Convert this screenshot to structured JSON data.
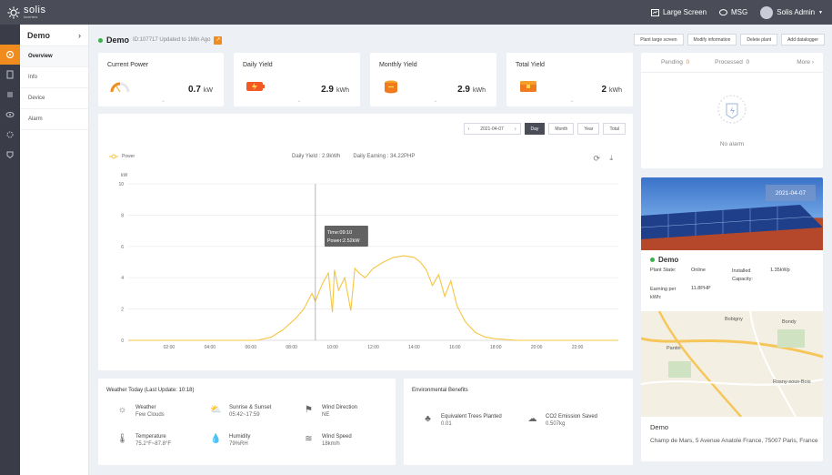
{
  "topbar": {
    "logo": "solis",
    "logo_sub": "inverters",
    "large_screen": "Large Screen",
    "msg": "MSG",
    "user": "Solis Admin"
  },
  "leftnav": {
    "icons": [
      "home-icon",
      "plant-icon",
      "report-icon",
      "eye-icon",
      "device-icon",
      "alarm-icon"
    ]
  },
  "subnav": {
    "title": "Demo",
    "items": [
      "Overview",
      "Info",
      "Device",
      "Alarm"
    ]
  },
  "plant": {
    "name": "Demo",
    "id": "ID:107717",
    "updated": "Updated to 1Min Ago"
  },
  "actions": [
    "Plant large screen",
    "Modify information",
    "Delete plant",
    "Add datalogger"
  ],
  "kpis": [
    {
      "title": "Current Power",
      "value": "0.7",
      "unit": "kW"
    },
    {
      "title": "Daily Yield",
      "value": "2.9",
      "unit": "kWh"
    },
    {
      "title": "Monthly Yield",
      "value": "2.9",
      "unit": "kWh"
    },
    {
      "title": "Total Yield",
      "value": "2",
      "unit": "kWh"
    }
  ],
  "alarm": {
    "pending_label": "Pending",
    "pending_count": "0",
    "processed_label": "Processed",
    "processed_count": "0",
    "more": "More",
    "empty": "No alarm"
  },
  "chart": {
    "date": "2021-04-07",
    "ranges": [
      "Day",
      "Month",
      "Year",
      "Total"
    ],
    "legend": "Power",
    "daily_yield": "Daily Yield : 2.9kWh",
    "daily_earning": "Daily Earning : 34.22PHP",
    "tooltip_time": "Time:09:10",
    "tooltip_power": "Power:2.52kW"
  },
  "chart_data": {
    "type": "line",
    "ylabel": "kW",
    "ylim": [
      0,
      10
    ],
    "yticks": [
      "0",
      "2",
      "4",
      "6",
      "8",
      "10"
    ],
    "xticks": [
      "02:00",
      "04:00",
      "06:00",
      "08:00",
      "10:00",
      "12:00",
      "14:00",
      "16:00",
      "18:00",
      "20:00",
      "22:00"
    ],
    "xlim": [
      0,
      24
    ],
    "series": [
      {
        "name": "Power",
        "color": "#f5c542",
        "x": [
          0,
          6.3,
          7.0,
          7.6,
          8.2,
          8.6,
          9.0,
          9.16,
          9.5,
          9.8,
          10.0,
          10.1,
          10.3,
          10.6,
          10.9,
          11.1,
          11.3,
          11.6,
          12.0,
          12.5,
          13.0,
          13.5,
          14.0,
          14.3,
          14.6,
          14.9,
          15.2,
          15.5,
          15.8,
          16.1,
          16.5,
          17.0,
          17.5,
          18.0,
          19.0,
          20.0,
          24.0
        ],
        "values": [
          0,
          0,
          0.2,
          0.7,
          1.4,
          2.0,
          3.0,
          2.5,
          3.6,
          4.3,
          1.8,
          4.5,
          3.2,
          4.0,
          1.9,
          4.6,
          4.3,
          4.0,
          4.6,
          5.0,
          5.3,
          5.4,
          5.3,
          5.0,
          4.5,
          3.5,
          4.2,
          2.8,
          3.8,
          2.2,
          1.2,
          0.5,
          0.2,
          0.1,
          0,
          0,
          0
        ]
      }
    ]
  },
  "weather": {
    "title": "Weather Today (Last Update: 10:18)",
    "items": [
      {
        "label": "Weather",
        "value": "Few Clouds"
      },
      {
        "label": "Sunrise & Sunset",
        "value": "05:42~17:59"
      },
      {
        "label": "Wind Direction",
        "value": "NE"
      },
      {
        "label": "Temperature",
        "value": "75.2°F~87.8°F"
      },
      {
        "label": "Humidity",
        "value": "79%RH"
      },
      {
        "label": "Wind Speed",
        "value": "18km/h"
      }
    ]
  },
  "env": {
    "title": "Environmental Benefits",
    "items": [
      {
        "label": "Equivalent Trees Planted",
        "value": "0.01"
      },
      {
        "label": "CO2 Emission Saved",
        "value": "0.507kg"
      }
    ]
  },
  "plant_card": {
    "date": "2021-04-07",
    "name": "Demo",
    "state_label": "Plant State:",
    "state_value": "Online",
    "capacity_label": "Installed Capacity:",
    "capacity_value": "1.35kWp",
    "earning_label": "Earning per kWh:",
    "earning_value": "11.8PHP"
  },
  "map": {
    "labels": [
      "Bobigny",
      "Bondy",
      "Pantin",
      "Rosny-sous-Bois"
    ],
    "title": "Demo",
    "address": "Champ de Mars, 5 Avenue Anatole France, 75007 Paris, France"
  }
}
